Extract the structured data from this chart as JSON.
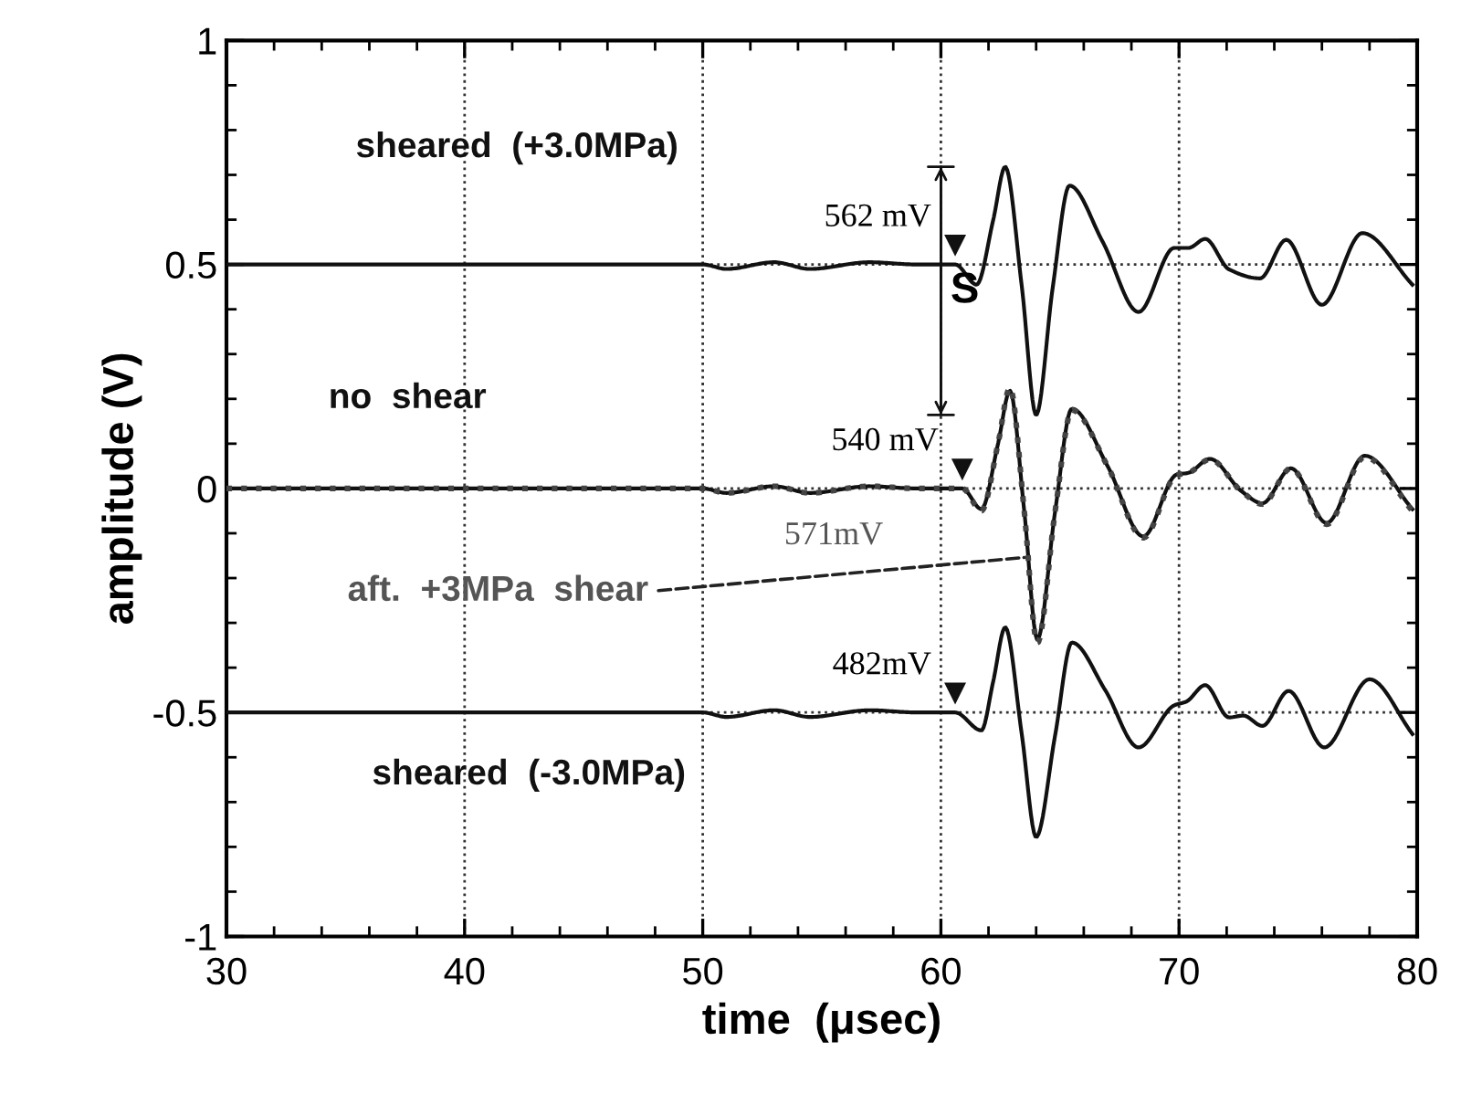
{
  "chart_data": {
    "type": "line",
    "xlabel": "time  (μsec)",
    "ylabel": "amplitude (V)",
    "xlim": [
      30,
      80
    ],
    "ylim": [
      -1,
      1
    ],
    "xticks": [
      30,
      40,
      50,
      60,
      70,
      80
    ],
    "yticks": [
      -1,
      -0.5,
      0,
      0.5,
      1
    ],
    "grid": true,
    "series": [
      {
        "name": "sheared  (+3.0MPa)",
        "color": "#111111",
        "line_style": "solid",
        "x": [
          30,
          40,
          50,
          51,
          53,
          54.5,
          57,
          59,
          60.6,
          61.5,
          62.2,
          62.7,
          63.4,
          64.0,
          64.7,
          65.4,
          66.8,
          68.3,
          69.8,
          70.4,
          71.1,
          72.1,
          73.4,
          74.5,
          76.0,
          77.7,
          79.8
        ],
        "values": [
          0.5,
          0.5,
          0.5,
          0.49,
          0.505,
          0.49,
          0.505,
          0.5,
          0.5,
          0.455,
          0.6,
          0.718,
          0.45,
          0.164,
          0.45,
          0.676,
          0.55,
          0.394,
          0.537,
          0.537,
          0.557,
          0.489,
          0.469,
          0.555,
          0.41,
          0.57,
          0.455
        ]
      },
      {
        "name": "no  shear",
        "color": "#111111",
        "line_style": "solid",
        "x": [
          30,
          40,
          50,
          51,
          53,
          54.5,
          57,
          59,
          60.9,
          61.7,
          62.4,
          62.9,
          63.5,
          64.05,
          64.8,
          65.5,
          67.0,
          68.5,
          69.9,
          70.4,
          71.3,
          72.6,
          73.5,
          74.7,
          76.2,
          77.8,
          79.8
        ],
        "values": [
          0,
          0,
          0,
          -0.01,
          0.005,
          -0.01,
          0.005,
          0,
          0,
          -0.046,
          0.1,
          0.218,
          -0.05,
          -0.337,
          -0.05,
          0.178,
          0.05,
          -0.107,
          0.031,
          0.035,
          0.066,
          -0.005,
          -0.033,
          0.045,
          -0.077,
          0.073,
          -0.046
        ]
      },
      {
        "name": "aft.  +3MPa  shear",
        "color": "#444444",
        "line_style": "dotted",
        "x": [
          30,
          40,
          50,
          51,
          53,
          54.5,
          57,
          59,
          60.9,
          61.7,
          62.4,
          62.9,
          63.5,
          64.05,
          64.8,
          65.5,
          67.0,
          68.5,
          69.9,
          70.4,
          71.3,
          72.6,
          73.5,
          74.7,
          76.2,
          77.8,
          79.8
        ],
        "values": [
          0,
          0,
          0,
          -0.01,
          0.005,
          -0.01,
          0.005,
          0,
          0,
          -0.05,
          0.1,
          0.225,
          -0.05,
          -0.345,
          -0.05,
          0.175,
          0.05,
          -0.11,
          0.03,
          0.035,
          0.065,
          -0.005,
          -0.035,
          0.045,
          -0.08,
          0.07,
          -0.05
        ]
      },
      {
        "name": "sheared  (-3.0MPa)",
        "color": "#111111",
        "line_style": "solid",
        "x": [
          30,
          40,
          50,
          51,
          53,
          54.5,
          57,
          59,
          60.6,
          61.7,
          62.2,
          62.7,
          63.4,
          64.0,
          64.8,
          65.5,
          66.9,
          68.3,
          69.8,
          70.3,
          71.1,
          72.1,
          72.7,
          73.5,
          74.6,
          76.1,
          78.0,
          79.8
        ],
        "values": [
          -0.5,
          -0.5,
          -0.5,
          -0.51,
          -0.495,
          -0.51,
          -0.495,
          -0.5,
          -0.5,
          -0.54,
          -0.43,
          -0.31,
          -0.55,
          -0.778,
          -0.55,
          -0.344,
          -0.45,
          -0.578,
          -0.484,
          -0.476,
          -0.439,
          -0.511,
          -0.507,
          -0.53,
          -0.452,
          -0.578,
          -0.426,
          -0.548
        ]
      }
    ],
    "annotations": [
      "562 mV",
      "540 mV",
      "571mV",
      "482mV",
      "S"
    ]
  }
}
